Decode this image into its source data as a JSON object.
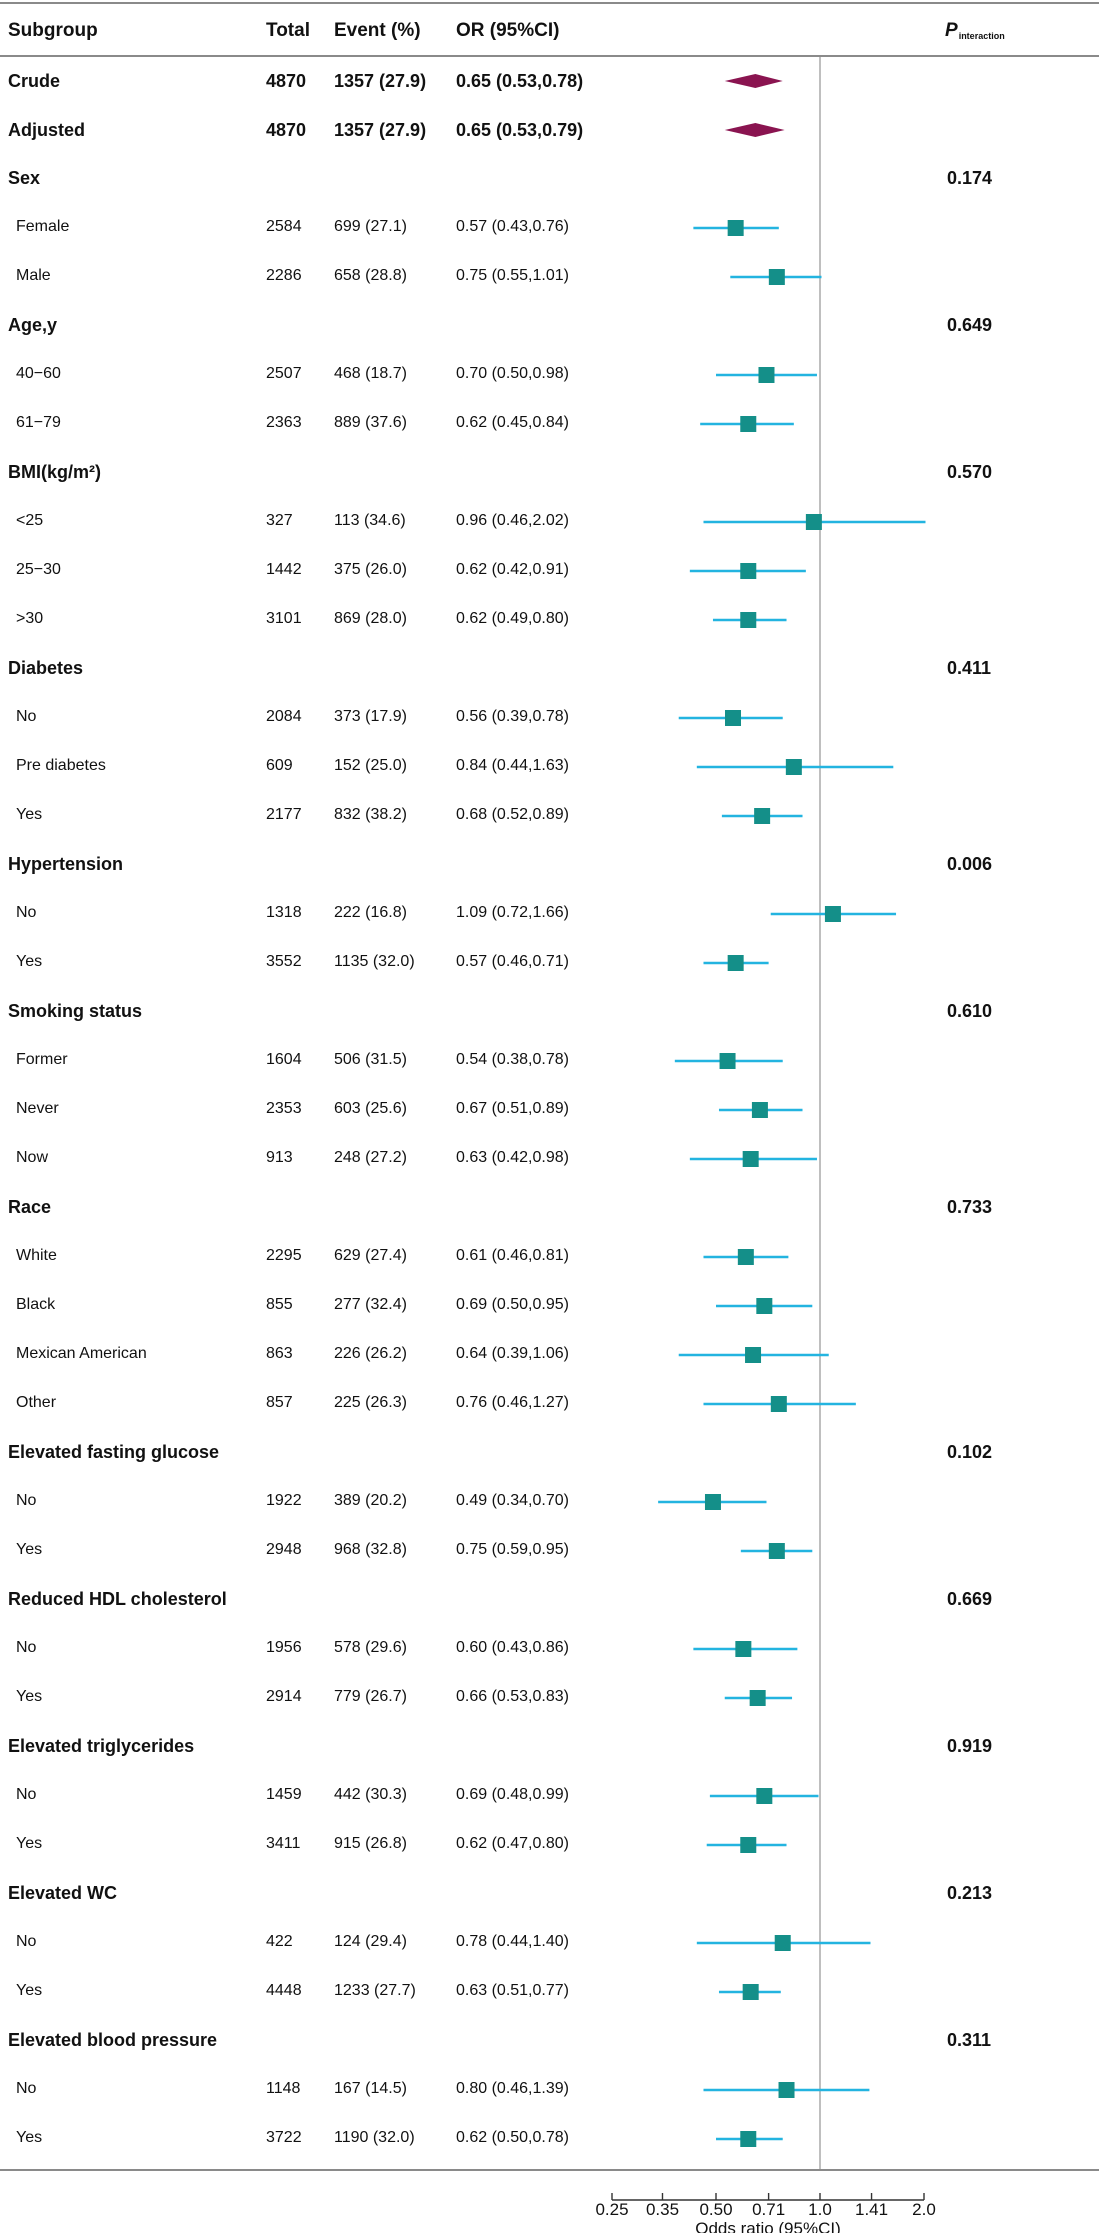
{
  "header": {
    "subgroup": "Subgroup",
    "total": "Total",
    "event": "Event (%)",
    "or": "OR (95%CI)",
    "p_main": "P",
    "p_sub": "interaction"
  },
  "colors": {
    "ci_line": "#23b4e0",
    "square": "#148f89",
    "diamond": "#8a1450",
    "ref_line": "#bfbfbf",
    "rule": "#8a8a8a"
  },
  "rows": [
    {
      "kind": "summary",
      "label": "Crude",
      "total": "4870",
      "event": "1357 (27.9)",
      "or": "0.65 (0.53,0.78)",
      "p": "",
      "est": 0.65,
      "lo": 0.53,
      "hi": 0.78
    },
    {
      "kind": "summary",
      "label": "Adjusted",
      "total": "4870",
      "event": "1357 (27.9)",
      "or": "0.65 (0.53,0.79)",
      "p": "",
      "est": 0.65,
      "lo": 0.53,
      "hi": 0.79
    },
    {
      "kind": "group",
      "label": "Sex",
      "p": "0.174"
    },
    {
      "kind": "sub",
      "label": "Female",
      "total": "2584",
      "event": "699 (27.1)",
      "or": "0.57 (0.43,0.76)",
      "est": 0.57,
      "lo": 0.43,
      "hi": 0.76
    },
    {
      "kind": "sub",
      "label": "Male",
      "total": "2286",
      "event": "658 (28.8)",
      "or": "0.75 (0.55,1.01)",
      "est": 0.75,
      "lo": 0.55,
      "hi": 1.01
    },
    {
      "kind": "group",
      "label": "Age,y",
      "p": "0.649"
    },
    {
      "kind": "sub",
      "label": "40−60",
      "total": "2507",
      "event": "468 (18.7)",
      "or": "0.70 (0.50,0.98)",
      "est": 0.7,
      "lo": 0.5,
      "hi": 0.98
    },
    {
      "kind": "sub",
      "label": "61−79",
      "total": "2363",
      "event": "889 (37.6)",
      "or": "0.62 (0.45,0.84)",
      "est": 0.62,
      "lo": 0.45,
      "hi": 0.84
    },
    {
      "kind": "group",
      "label": "BMI(kg/m²)",
      "p": "0.570"
    },
    {
      "kind": "sub",
      "label": "<25",
      "total": "327",
      "event": "113 (34.6)",
      "or": "0.96 (0.46,2.02)",
      "est": 0.96,
      "lo": 0.46,
      "hi": 2.02
    },
    {
      "kind": "sub",
      "label": "25−30",
      "total": "1442",
      "event": "375 (26.0)",
      "or": "0.62 (0.42,0.91)",
      "est": 0.62,
      "lo": 0.42,
      "hi": 0.91
    },
    {
      "kind": "sub",
      "label": ">30",
      "total": "3101",
      "event": "869 (28.0)",
      "or": "0.62 (0.49,0.80)",
      "est": 0.62,
      "lo": 0.49,
      "hi": 0.8
    },
    {
      "kind": "group",
      "label": "Diabetes",
      "p": "0.411"
    },
    {
      "kind": "sub",
      "label": "No",
      "total": "2084",
      "event": "373 (17.9)",
      "or": "0.56 (0.39,0.78)",
      "est": 0.56,
      "lo": 0.39,
      "hi": 0.78
    },
    {
      "kind": "sub",
      "label": "Pre diabetes",
      "total": "609",
      "event": "152 (25.0)",
      "or": "0.84 (0.44,1.63)",
      "est": 0.84,
      "lo": 0.44,
      "hi": 1.63
    },
    {
      "kind": "sub",
      "label": "Yes",
      "total": "2177",
      "event": "832 (38.2)",
      "or": "0.68 (0.52,0.89)",
      "est": 0.68,
      "lo": 0.52,
      "hi": 0.89
    },
    {
      "kind": "group",
      "label": "Hypertension",
      "p": "0.006"
    },
    {
      "kind": "sub",
      "label": "No",
      "total": "1318",
      "event": "222 (16.8)",
      "or": "1.09 (0.72,1.66)",
      "est": 1.09,
      "lo": 0.72,
      "hi": 1.66
    },
    {
      "kind": "sub",
      "label": "Yes",
      "total": "3552",
      "event": "1135 (32.0)",
      "or": "0.57 (0.46,0.71)",
      "est": 0.57,
      "lo": 0.46,
      "hi": 0.71
    },
    {
      "kind": "group",
      "label": "Smoking status",
      "p": "0.610"
    },
    {
      "kind": "sub",
      "label": "Former",
      "total": "1604",
      "event": "506 (31.5)",
      "or": "0.54 (0.38,0.78)",
      "est": 0.54,
      "lo": 0.38,
      "hi": 0.78
    },
    {
      "kind": "sub",
      "label": "Never",
      "total": "2353",
      "event": "603 (25.6)",
      "or": "0.67 (0.51,0.89)",
      "est": 0.67,
      "lo": 0.51,
      "hi": 0.89
    },
    {
      "kind": "sub",
      "label": "Now",
      "total": "913",
      "event": "248 (27.2)",
      "or": "0.63 (0.42,0.98)",
      "est": 0.63,
      "lo": 0.42,
      "hi": 0.98
    },
    {
      "kind": "group",
      "label": "Race",
      "p": "0.733"
    },
    {
      "kind": "sub",
      "label": "White",
      "total": "2295",
      "event": "629 (27.4)",
      "or": "0.61 (0.46,0.81)",
      "est": 0.61,
      "lo": 0.46,
      "hi": 0.81
    },
    {
      "kind": "sub",
      "label": "Black",
      "total": "855",
      "event": "277 (32.4)",
      "or": "0.69 (0.50,0.95)",
      "est": 0.69,
      "lo": 0.5,
      "hi": 0.95
    },
    {
      "kind": "sub",
      "label": "Mexican American",
      "total": "863",
      "event": "226 (26.2)",
      "or": "0.64 (0.39,1.06)",
      "est": 0.64,
      "lo": 0.39,
      "hi": 1.06
    },
    {
      "kind": "sub",
      "label": "Other",
      "total": "857",
      "event": "225 (26.3)",
      "or": "0.76 (0.46,1.27)",
      "est": 0.76,
      "lo": 0.46,
      "hi": 1.27
    },
    {
      "kind": "group",
      "label": "Elevated fasting glucose",
      "p": "0.102"
    },
    {
      "kind": "sub",
      "label": "No",
      "total": "1922",
      "event": "389 (20.2)",
      "or": "0.49 (0.34,0.70)",
      "est": 0.49,
      "lo": 0.34,
      "hi": 0.7
    },
    {
      "kind": "sub",
      "label": "Yes",
      "total": "2948",
      "event": "968 (32.8)",
      "or": "0.75 (0.59,0.95)",
      "est": 0.75,
      "lo": 0.59,
      "hi": 0.95
    },
    {
      "kind": "group",
      "label": "Reduced HDL cholesterol",
      "p": "0.669"
    },
    {
      "kind": "sub",
      "label": "No",
      "total": "1956",
      "event": "578 (29.6)",
      "or": "0.60 (0.43,0.86)",
      "est": 0.6,
      "lo": 0.43,
      "hi": 0.86
    },
    {
      "kind": "sub",
      "label": "Yes",
      "total": "2914",
      "event": "779 (26.7)",
      "or": "0.66 (0.53,0.83)",
      "est": 0.66,
      "lo": 0.53,
      "hi": 0.83
    },
    {
      "kind": "group",
      "label": "Elevated triglycerides",
      "p": "0.919"
    },
    {
      "kind": "sub",
      "label": "No",
      "total": "1459",
      "event": "442 (30.3)",
      "or": "0.69 (0.48,0.99)",
      "est": 0.69,
      "lo": 0.48,
      "hi": 0.99
    },
    {
      "kind": "sub",
      "label": "Yes",
      "total": "3411",
      "event": "915 (26.8)",
      "or": "0.62 (0.47,0.80)",
      "est": 0.62,
      "lo": 0.47,
      "hi": 0.8
    },
    {
      "kind": "group",
      "label": "Elevated WC",
      "p": "0.213"
    },
    {
      "kind": "sub",
      "label": "No",
      "total": "422",
      "event": "124 (29.4)",
      "or": "0.78 (0.44,1.40)",
      "est": 0.78,
      "lo": 0.44,
      "hi": 1.4
    },
    {
      "kind": "sub",
      "label": "Yes",
      "total": "4448",
      "event": "1233 (27.7)",
      "or": "0.63 (0.51,0.77)",
      "est": 0.63,
      "lo": 0.51,
      "hi": 0.77
    },
    {
      "kind": "group",
      "label": "Elevated blood pressure",
      "p": "0.311"
    },
    {
      "kind": "sub",
      "label": "No",
      "total": "1148",
      "event": "167 (14.5)",
      "or": "0.80 (0.46,1.39)",
      "est": 0.8,
      "lo": 0.46,
      "hi": 1.39
    },
    {
      "kind": "sub",
      "label": "Yes",
      "total": "3722",
      "event": "1190 (32.0)",
      "or": "0.62 (0.50,0.78)",
      "est": 0.62,
      "lo": 0.5,
      "hi": 0.78
    }
  ],
  "chart_data": {
    "type": "forest",
    "scale": "log2",
    "xlabel": "Odds ratio (95%CI)",
    "reference_value": 1.0,
    "xlim": [
      0.25,
      2.0
    ],
    "ticks": [
      0.25,
      0.35,
      0.5,
      0.71,
      1.0,
      1.41,
      2.0
    ],
    "tick_labels": [
      "0.25",
      "0.35",
      "0.50",
      "0.71",
      "1.0",
      "1.41",
      "2.0"
    ]
  }
}
